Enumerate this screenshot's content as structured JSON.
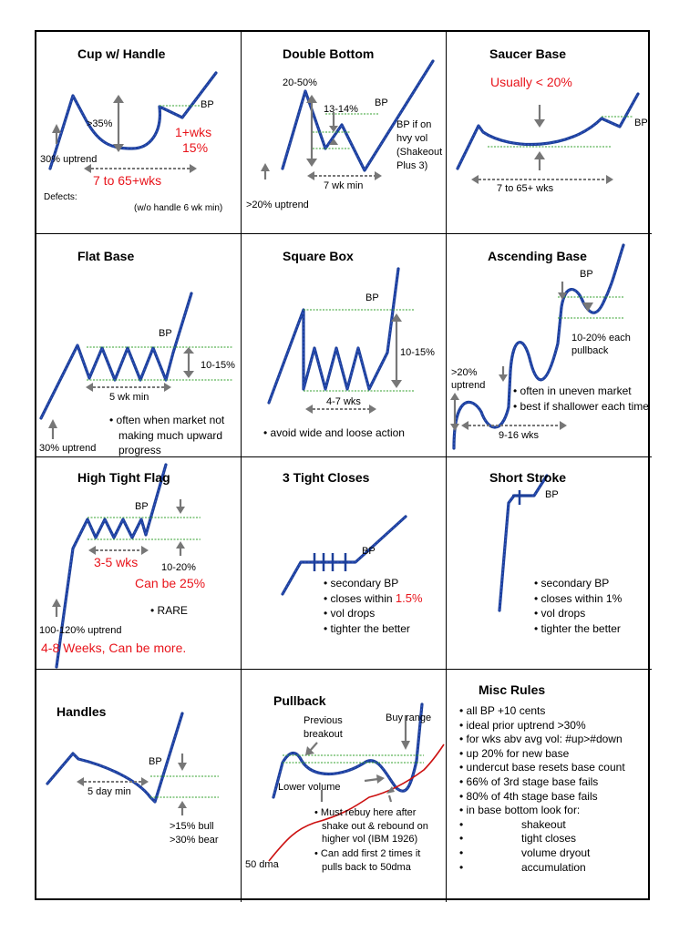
{
  "cells": {
    "cup": {
      "title": "Cup w/ Handle",
      "pct35": ">35%",
      "bp": "BP",
      "wks_handle": "1+wks",
      "handle_pct": "15%",
      "duration": "7 to 65+wks",
      "uptrend": "30% uptrend",
      "defects": "Defects:",
      "note": "(w/o handle 6 wk min)"
    },
    "double_bottom": {
      "title": "Double Bottom",
      "pct": "20-50%",
      "pct2": "13-14%",
      "bp": "BP",
      "note1": "BP if on",
      "note2": "hvy vol",
      "note3": "(Shakeout",
      "note4": "Plus 3)",
      "duration": "7 wk min",
      "uptrend": ">20% uptrend"
    },
    "saucer": {
      "title": "Saucer Base",
      "usually": "Usually < 20%",
      "bp": "BP",
      "duration": "7 to 65+ wks"
    },
    "flat": {
      "title": "Flat Base",
      "bp": "BP",
      "pct": "10-15%",
      "duration": "5 wk min",
      "bullets": [
        "• often when market not",
        "making much upward",
        "progress"
      ],
      "uptrend": "30% uptrend"
    },
    "square": {
      "title": "Square Box",
      "bp": "BP",
      "pct": "10-15%",
      "duration": "4-7 wks",
      "bullet": "• avoid wide and loose action"
    },
    "ascending": {
      "title": "Ascending Base",
      "bp": "BP",
      "pullback1": "10-20% each",
      "pullback2": "pullback",
      "up1": ">20%",
      "up2": "uptrend",
      "bullets": [
        "• often in uneven market",
        "• best if shallower each time"
      ],
      "duration": "9-16 wks"
    },
    "htf": {
      "title": "High Tight Flag",
      "bp": "BP",
      "duration": "3-5 wks",
      "pct": "10-20%",
      "can_be": "Can be 25%",
      "rare": "• RARE",
      "uptrend": "100-120% uptrend",
      "weeks": "4-8 Weeks, Can be more."
    },
    "three_tight": {
      "title": "3 Tight Closes",
      "bp": "BP",
      "b1": "• secondary BP",
      "b2": "• closes within ",
      "b2red": "1.5%",
      "b3": "• vol drops",
      "b4": "• tighter the better"
    },
    "short_stroke": {
      "title": "Short Stroke",
      "bp": "BP",
      "bullets": [
        "• secondary BP",
        "• closes within 1%",
        "• vol drops",
        "• tighter the better"
      ]
    },
    "handles": {
      "title": "Handles",
      "bp": "BP",
      "duration": "5 day min",
      "bull": ">15% bull",
      "bear": ">30% bear"
    },
    "pullback": {
      "title": "Pullback",
      "prev1": "Previous",
      "prev2": "breakout",
      "buy": "Buy range",
      "lower": "Lower volume",
      "b1": [
        "• Must rebuy here after",
        "shake out & rebound on",
        "higher vol (IBM 1926)"
      ],
      "b2": [
        "• Can add first 2 times it",
        "pulls back to 50dma"
      ],
      "dma": "50 dma"
    },
    "misc": {
      "title": "Misc Rules",
      "items": [
        "• all BP +10 cents",
        "• ideal prior uptrend >30%",
        "• for wks abv avg vol: #up>#down",
        "• up 20% for new base",
        "• undercut base resets base count",
        "• 66% of 3rd stage base fails",
        "• 80% of 4th stage base fails",
        "• in base bottom look for:"
      ],
      "sub": [
        "shakeout",
        "tight closes",
        "volume dryout",
        "accumulation"
      ]
    }
  }
}
